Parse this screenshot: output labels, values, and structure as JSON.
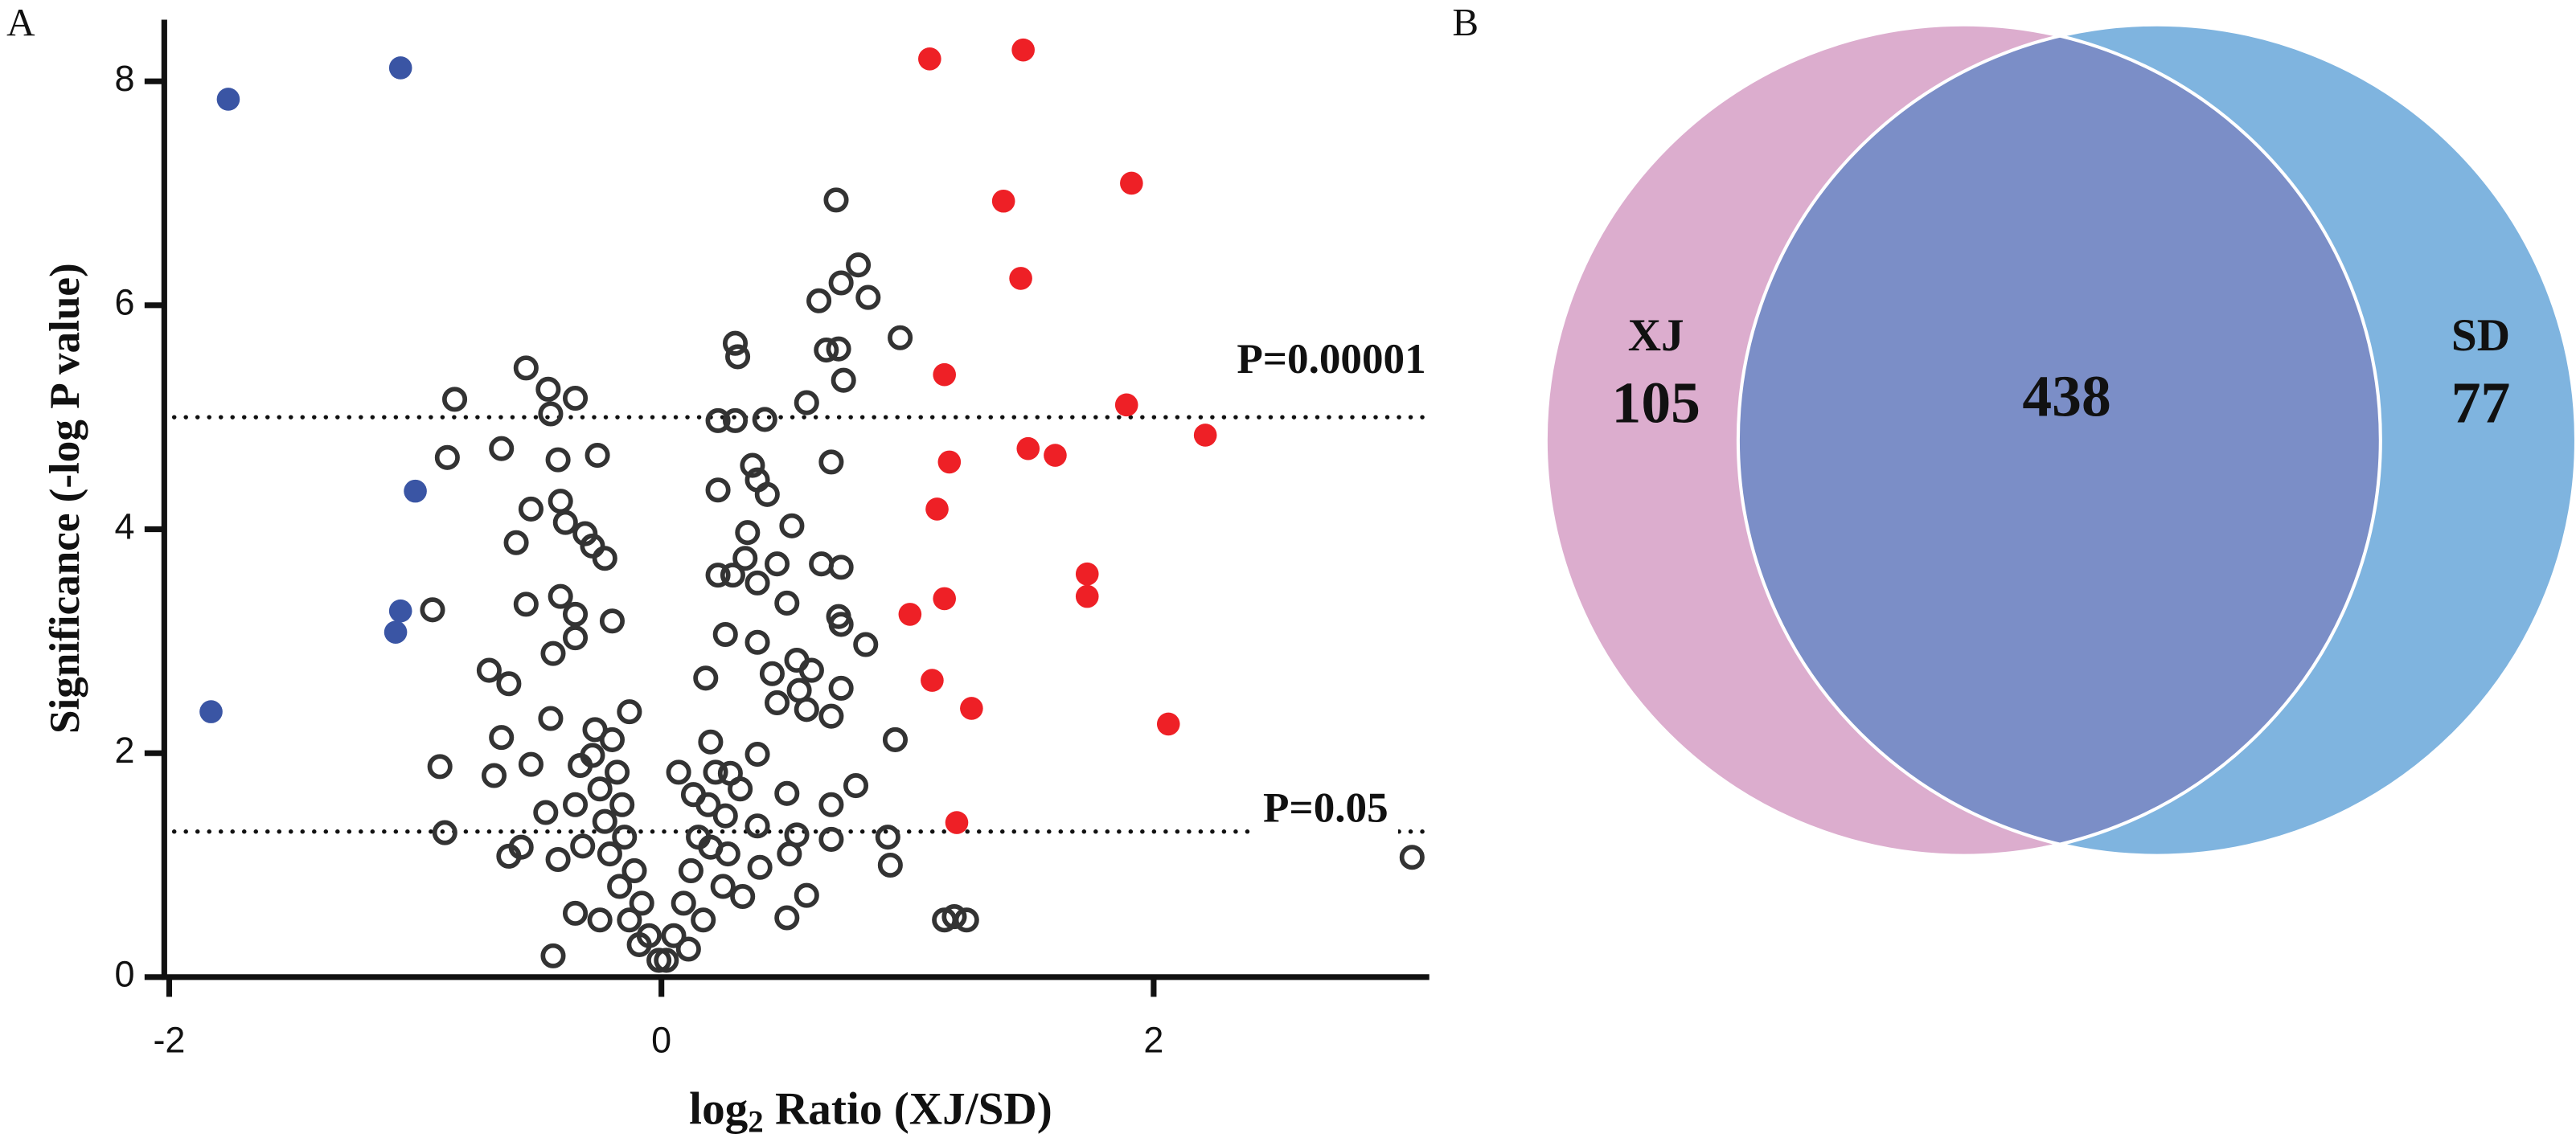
{
  "chart_data": [
    {
      "type": "scatter",
      "panel": "A",
      "x_label": [
        "log",
        "2",
        " Ratio (XJ/SD)"
      ],
      "y_label": "Significance (-log P value)",
      "xlim": [
        -2.02,
        3.12
      ],
      "ylim": [
        0,
        8.55
      ],
      "xticks": [
        -2,
        0,
        2
      ],
      "yticks": [
        0,
        2,
        4,
        6,
        8
      ],
      "hlines": [
        {
          "value": 5,
          "label": "P=0.00001"
        },
        {
          "value": 1.3,
          "label": "P=0.05"
        }
      ],
      "series": [
        {
          "color": "#3a55a4",
          "marker": "filled",
          "x": [
            -1.76,
            -1.06,
            -1.0,
            -1.06,
            -1.08,
            -1.83
          ],
          "values": [
            7.84,
            8.12,
            4.34,
            3.27,
            3.08,
            2.37
          ]
        },
        {
          "color": "#ee2026",
          "marker": "filled",
          "x": [
            1.09,
            1.47,
            1.91,
            1.39,
            1.46,
            1.15,
            1.89,
            2.21,
            1.49,
            1.6,
            1.17,
            1.12,
            1.73,
            1.73,
            1.15,
            1.01,
            1.1,
            1.26,
            2.06,
            1.2
          ],
          "values": [
            8.2,
            8.28,
            7.09,
            6.93,
            6.24,
            5.38,
            5.11,
            4.84,
            4.72,
            4.66,
            4.6,
            4.18,
            3.6,
            3.4,
            3.38,
            3.24,
            2.65,
            2.4,
            2.26,
            1.38
          ]
        },
        {
          "color": "#333333",
          "marker": "open",
          "x": [
            0.71,
            0.8,
            0.73,
            0.64,
            0.84,
            0.3,
            0.31,
            0.67,
            0.72,
            0.97,
            0.74,
            0.59,
            -0.55,
            -0.46,
            -0.35,
            -0.45,
            -0.84,
            0.23,
            0.3,
            0.42,
            -0.65,
            -0.87,
            -0.42,
            -0.26,
            0.69,
            0.37,
            0.39,
            0.23,
            0.43,
            -0.41,
            -0.53,
            -0.39,
            0.53,
            0.35,
            -0.31,
            -0.28,
            -0.59,
            -0.23,
            0.34,
            0.47,
            0.65,
            0.73,
            0.23,
            0.29,
            0.39,
            -0.55,
            -0.41,
            -0.35,
            -0.93,
            0.51,
            0.72,
            0.73,
            -0.2,
            0.26,
            0.39,
            -0.35,
            0.83,
            -0.44,
            -0.7,
            0.55,
            0.45,
            0.61,
            0.18,
            -0.62,
            0.56,
            0.73,
            0.47,
            0.59,
            0.69,
            -0.45,
            0.95,
            -0.65,
            -0.13,
            -0.27,
            0.2,
            0.39,
            -0.53,
            -0.33,
            -0.9,
            -0.68,
            0.07,
            0.28,
            0.79,
            0.13,
            0.51,
            0.69,
            -0.47,
            -0.35,
            0.26,
            0.39,
            -0.88,
            0.55,
            0.92,
            0.69,
            -0.57,
            -0.32,
            0.2,
            0.27,
            0.52,
            -0.62,
            -0.42,
            0.93,
            0.4,
            0.33,
            0.59,
            -0.35,
            0.51,
            1.15,
            1.19,
            1.24,
            3.05,
            -0.44,
            -0.2,
            -0.18,
            -0.16,
            -0.15,
            -0.11,
            -0.08,
            -0.05,
            -0.01,
            0.02,
            0.05,
            0.09,
            0.12,
            0.15,
            0.19,
            0.22,
            -0.17,
            -0.21,
            -0.23,
            -0.25,
            -0.09,
            0.11,
            0.17,
            -0.13,
            -0.25,
            0.25,
            -0.28,
            0.32
          ],
          "values": [
            6.94,
            6.36,
            6.2,
            6.04,
            6.07,
            5.66,
            5.54,
            5.6,
            5.61,
            5.71,
            5.33,
            5.13,
            5.44,
            5.25,
            5.17,
            5.03,
            5.16,
            4.97,
            4.97,
            4.98,
            4.72,
            4.64,
            4.62,
            4.66,
            4.6,
            4.57,
            4.44,
            4.35,
            4.31,
            4.25,
            4.18,
            4.06,
            4.03,
            3.97,
            3.96,
            3.85,
            3.88,
            3.74,
            3.74,
            3.69,
            3.69,
            3.66,
            3.59,
            3.59,
            3.52,
            3.33,
            3.4,
            3.24,
            3.28,
            3.34,
            3.22,
            3.15,
            3.18,
            3.06,
            2.99,
            3.03,
            2.97,
            2.89,
            2.74,
            2.83,
            2.71,
            2.74,
            2.67,
            2.62,
            2.56,
            2.58,
            2.45,
            2.39,
            2.33,
            2.31,
            2.12,
            2.14,
            2.37,
            2.21,
            2.1,
            1.99,
            1.9,
            1.89,
            1.88,
            1.8,
            1.83,
            1.82,
            1.71,
            1.63,
            1.64,
            1.54,
            1.47,
            1.54,
            1.44,
            1.35,
            1.29,
            1.27,
            1.25,
            1.23,
            1.16,
            1.17,
            1.16,
            1.1,
            1.1,
            1.08,
            1.05,
            1.0,
            0.98,
            0.72,
            0.73,
            0.57,
            0.53,
            0.51,
            0.54,
            0.51,
            1.07,
            0.19,
            2.12,
            1.83,
            1.54,
            1.25,
            0.95,
            0.66,
            0.37,
            0.15,
            0.15,
            0.37,
            0.66,
            0.95,
            1.25,
            1.54,
            1.83,
            0.81,
            1.1,
            1.39,
            1.68,
            0.29,
            0.25,
            0.51,
            0.51,
            0.51,
            0.81,
            1.98,
            1.68
          ]
        }
      ]
    },
    {
      "type": "venn",
      "panel": "B",
      "sets": [
        {
          "name": "XJ",
          "value": 105,
          "color": "#dcadce"
        },
        {
          "name": "SD",
          "value": 77,
          "color": "#7fb4df"
        }
      ],
      "intersection": {
        "value": 438,
        "color": "#7b8ec7"
      }
    }
  ]
}
